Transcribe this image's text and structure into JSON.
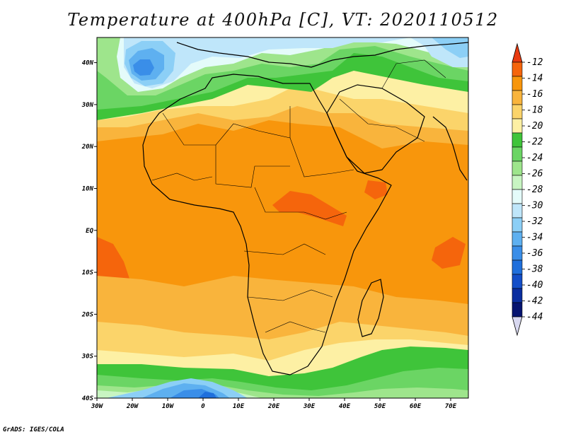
{
  "title": "Temperature at 400hPa [C], VT: 2020110512",
  "credit": "GrADS: IGES/COLA",
  "chart_data": {
    "type": "heatmap",
    "title": "Temperature at 400hPa [C], VT: 2020110512",
    "variable": "Temperature",
    "level": "400hPa",
    "units": "C",
    "valid_time": "2020110512",
    "x_ticks": [
      "30W",
      "20W",
      "10W",
      "0",
      "10E",
      "20E",
      "30E",
      "40E",
      "50E",
      "60E",
      "70E"
    ],
    "y_ticks": [
      "40N",
      "30N",
      "20N",
      "10N",
      "EQ",
      "10S",
      "20S",
      "30S",
      "40S"
    ],
    "lon_range": [
      -30,
      75
    ],
    "lat_range": [
      -40,
      46
    ],
    "colorbar": {
      "levels": [
        "-12",
        "-14",
        "-16",
        "-18",
        "-20",
        "-22",
        "-24",
        "-26",
        "-28",
        "-30",
        "-32",
        "-34",
        "-36",
        "-38",
        "-40",
        "-42",
        "-44"
      ],
      "colors": [
        "#e83a10",
        "#f5650c",
        "#f8960c",
        "#f9b43c",
        "#fbd46a",
        "#fdf0a4",
        "#3fc43a",
        "#6bd564",
        "#9ee58c",
        "#c8f5c2",
        "#e4fbfa",
        "#bfe6fa",
        "#8ccff6",
        "#5eb0f0",
        "#3a8ee8",
        "#1f6fdc",
        "#134ec8",
        "#0a2ea0",
        "#061470",
        "#d8d8f0"
      ]
    }
  }
}
